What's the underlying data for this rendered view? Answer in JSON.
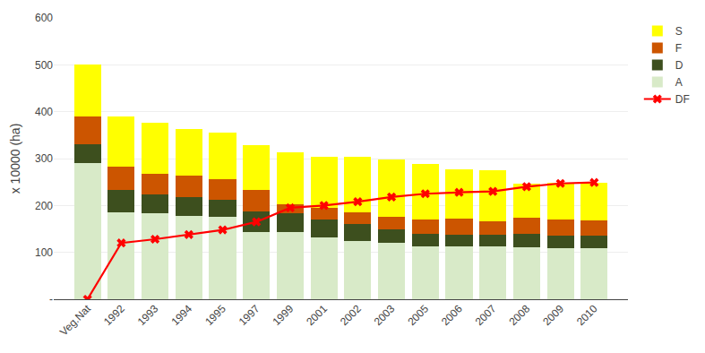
{
  "chart_data": {
    "type": "bar",
    "stacked": true,
    "categories": [
      "Veg.Nat",
      "1992",
      "1993",
      "1994",
      "1995",
      "1997",
      "1999",
      "2001",
      "2002",
      "2003",
      "2005",
      "2006",
      "2007",
      "2008",
      "2009",
      "2010"
    ],
    "series": [
      {
        "name": "A",
        "color": "#d8eac8",
        "values": [
          290,
          185,
          183,
          178,
          175,
          143,
          143,
          132,
          125,
          120,
          112,
          112,
          112,
          110,
          108,
          108
        ]
      },
      {
        "name": "D",
        "color": "#3d4f1e",
        "values": [
          40,
          48,
          40,
          40,
          37,
          45,
          40,
          38,
          35,
          30,
          28,
          25,
          25,
          30,
          28,
          28
        ]
      },
      {
        "name": "F",
        "color": "#cc5500",
        "values": [
          60,
          50,
          45,
          45,
          45,
          45,
          20,
          25,
          25,
          25,
          30,
          35,
          30,
          33,
          35,
          33
        ]
      },
      {
        "name": "S",
        "color": "#ffff00",
        "values": [
          110,
          107,
          108,
          100,
          98,
          95,
          110,
          108,
          118,
          123,
          118,
          105,
          108,
          73,
          78,
          80
        ]
      },
      {
        "name": "DF",
        "type": "line",
        "color": "#ff0000",
        "marker": "x",
        "values": [
          0,
          120,
          128,
          138,
          148,
          165,
          195,
          200,
          208,
          218,
          225,
          228,
          230,
          240,
          247,
          249
        ]
      }
    ],
    "ylabel": "x 10000 (ha)",
    "ylim": [
      0,
      600
    ],
    "yticks": [
      {
        "value": 0,
        "label": "-"
      },
      100,
      200,
      300,
      400,
      500,
      600
    ],
    "grid": true,
    "legend": "right"
  }
}
